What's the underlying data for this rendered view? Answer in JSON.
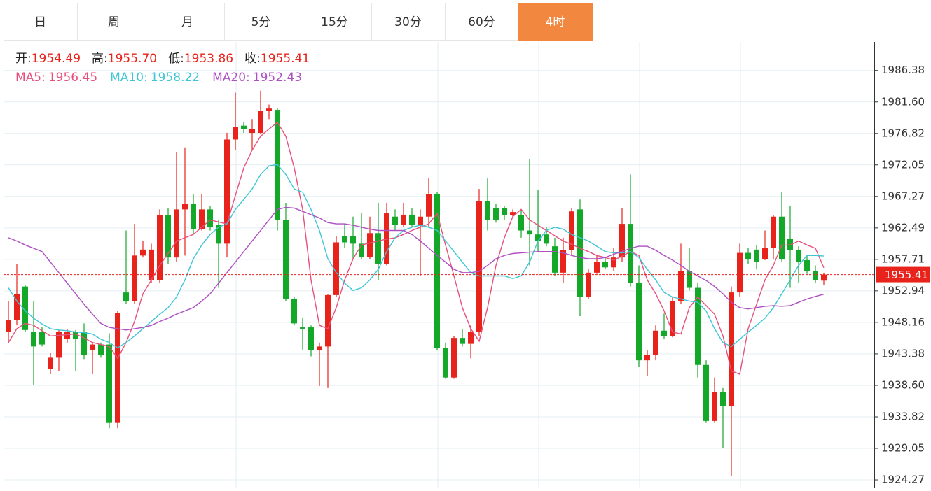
{
  "tabs": [
    "日",
    "周",
    "月",
    "5分",
    "15分",
    "30分",
    "60分",
    "4时"
  ],
  "active_tab": 7,
  "chart_data": {
    "type": "candlestick",
    "ohlc_labels": [
      "开:",
      "高:",
      "低:",
      "收:"
    ],
    "ohlc_value_labels": [
      "1954.49",
      "1955.70",
      "1953.86",
      "1955.41"
    ],
    "up_color": "#e8231b",
    "down_color": "#14a829",
    "open": [
      1946.7,
      1948.5,
      1953.6,
      1946.7,
      1946.7,
      1941.1,
      1942.8,
      1945.6,
      1946.7,
      1946.7,
      1944.0,
      1944.8,
      1944.8,
      1932.9,
      1952.7,
      1951.4,
      1958.3,
      1954.6,
      1954.6,
      1964.4,
      1958.0,
      1965.3,
      1966.1,
      1962.3,
      1965.3,
      1962.9,
      1960.1,
      1975.9,
      1978.0,
      1976.9,
      1976.9,
      1980.3,
      1980.4,
      1963.7,
      1951.7,
      1947.4,
      1947.4,
      1944.0,
      1944.5,
      1952.3,
      1961.3,
      1961.3,
      1960.1,
      1958.1,
      1961.7,
      1957.0,
      1964.2,
      1962.9,
      1964.5,
      1962.9,
      1964.2,
      1967.6,
      1944.3,
      1939.8,
      1945.8,
      1944.9,
      1946.7,
      1966.6,
      1965.5,
      1965.5,
      1964.4,
      1964.4,
      1962.1,
      1961.5,
      1961.5,
      1959.7,
      1955.7,
      1959.1,
      1965.3,
      1952.0,
      1955.7,
      1957.3,
      1956.5,
      1958.0,
      1963.1,
      1954.1,
      1942.4,
      1943.2,
      1946.9,
      1946.1,
      1951.4,
      1955.9,
      1953.4,
      1941.7,
      1933.2,
      1937.6,
      1935.5,
      1952.7,
      1958.7,
      1959.2,
      1957.8,
      1959.4,
      1964.2,
      1960.8,
      1959.1,
      1957.6,
      1955.9,
      1954.49
    ],
    "high": [
      1951.4,
      1957.0,
      1953.8,
      1951.4,
      1947.4,
      1943.5,
      1947.0,
      1947.2,
      1947.0,
      1948.0,
      1945.1,
      1945.1,
      1946.5,
      1949.9,
      1962.1,
      1963.1,
      1960.5,
      1960.1,
      1965.3,
      1965.5,
      1974.0,
      1974.7,
      1967.6,
      1967.6,
      1965.8,
      1963.7,
      1976.9,
      1983.0,
      1978.5,
      1979.0,
      1983.3,
      1981.2,
      1980.6,
      1966.3,
      1952.0,
      1948.8,
      1947.7,
      1945.1,
      1952.5,
      1961.3,
      1963.1,
      1964.2,
      1964.7,
      1964.2,
      1966.3,
      1966.3,
      1965.3,
      1966.3,
      1965.5,
      1965.3,
      1970.0,
      1967.9,
      1945.1,
      1946.1,
      1947.2,
      1947.7,
      1968.4,
      1970.0,
      1966.1,
      1965.8,
      1965.3,
      1965.3,
      1972.9,
      1968.2,
      1962.6,
      1961.0,
      1961.0,
      1965.5,
      1966.8,
      1956.2,
      1958.3,
      1958.0,
      1959.4,
      1965.5,
      1970.6,
      1956.8,
      1944.0,
      1947.7,
      1949.5,
      1952.0,
      1960.1,
      1959.4,
      1954.1,
      1942.4,
      1939.8,
      1938.2,
      1953.6,
      1960.1,
      1959.4,
      1959.9,
      1962.1,
      1964.4,
      1967.9,
      1965.8,
      1959.7,
      1958.3,
      1956.8,
      1955.7
    ],
    "low": [
      1945.1,
      1947.7,
      1946.7,
      1938.7,
      1944.5,
      1940.3,
      1940.8,
      1945.1,
      1940.8,
      1942.6,
      1940.3,
      1942.8,
      1932.1,
      1932.1,
      1950.9,
      1950.9,
      1958.0,
      1954.1,
      1954.1,
      1957.0,
      1957.3,
      1958.3,
      1961.5,
      1962.1,
      1962.1,
      1953.4,
      1958.0,
      1974.3,
      1976.9,
      1974.3,
      1976.7,
      1979.0,
      1962.1,
      1951.4,
      1947.7,
      1944.0,
      1943.0,
      1938.5,
      1938.2,
      1952.0,
      1959.4,
      1957.8,
      1957.8,
      1957.8,
      1954.6,
      1956.8,
      1962.1,
      1962.6,
      1962.6,
      1955.2,
      1962.6,
      1944.0,
      1939.6,
      1939.6,
      1944.5,
      1942.7,
      1946.1,
      1962.1,
      1963.3,
      1963.7,
      1964.2,
      1961.0,
      1956.8,
      1958.9,
      1959.7,
      1955.2,
      1954.1,
      1958.3,
      1949.1,
      1951.7,
      1955.5,
      1956.2,
      1955.9,
      1957.3,
      1953.6,
      1941.4,
      1940.0,
      1942.4,
      1945.6,
      1945.9,
      1950.9,
      1953.0,
      1939.8,
      1932.9,
      1932.9,
      1929.1,
      1924.9,
      1952.0,
      1957.0,
      1956.2,
      1957.6,
      1957.8,
      1957.3,
      1953.4,
      1954.1,
      1955.5,
      1954.1,
      1953.86
    ],
    "close": [
      1948.5,
      1952.5,
      1947.0,
      1944.5,
      1944.8,
      1942.8,
      1946.7,
      1946.7,
      1945.6,
      1943.2,
      1944.8,
      1943.2,
      1932.9,
      1949.6,
      1951.4,
      1958.3,
      1959.2,
      1959.2,
      1964.4,
      1958.0,
      1965.3,
      1966.1,
      1962.3,
      1965.3,
      1962.6,
      1960.1,
      1975.9,
      1977.8,
      1977.5,
      1977.5,
      1980.3,
      1980.6,
      1963.7,
      1951.7,
      1948.0,
      1947.2,
      1944.0,
      1944.5,
      1952.3,
      1960.3,
      1960.3,
      1960.1,
      1958.1,
      1961.7,
      1957.0,
      1964.7,
      1962.9,
      1964.5,
      1962.9,
      1964.2,
      1967.6,
      1944.3,
      1939.8,
      1945.8,
      1944.9,
      1946.7,
      1966.6,
      1963.7,
      1963.7,
      1964.4,
      1964.9,
      1962.1,
      1961.5,
      1960.5,
      1960.1,
      1955.7,
      1959.1,
      1965.0,
      1952.0,
      1955.7,
      1957.3,
      1956.5,
      1958.0,
      1963.1,
      1954.1,
      1942.4,
      1943.2,
      1946.9,
      1946.1,
      1951.4,
      1955.9,
      1953.4,
      1941.7,
      1933.2,
      1937.6,
      1935.5,
      1952.7,
      1958.7,
      1957.8,
      1957.3,
      1959.4,
      1964.2,
      1957.8,
      1959.1,
      1957.3,
      1955.9,
      1954.6,
      1955.41
    ],
    "series": [
      {
        "name": "MA5: ",
        "color": "#e8507c",
        "values": [
          1945.1,
          1947.2,
          1948.0,
          1947.7,
          1946.9,
          1946.1,
          1946.2,
          1946.3,
          1946.4,
          1945.8,
          1945.1,
          1944.8,
          1944.5,
          1942.7,
          1945.1,
          1948.3,
          1952.5,
          1954.6,
          1956.8,
          1958.6,
          1960.5,
          1961.0,
          1961.5,
          1962.6,
          1963.7,
          1963.4,
          1963.1,
          1967.4,
          1971.6,
          1974.3,
          1976.4,
          1977.5,
          1978.5,
          1976.4,
          1971.6,
          1965.3,
          1954.6,
          1947.7,
          1947.2,
          1950.4,
          1954.6,
          1957.8,
          1959.9,
          1960.2,
          1960.5,
          1960.8,
          1961.0,
          1961.5,
          1962.1,
          1962.6,
          1963.1,
          1964.7,
          1959.9,
          1955.2,
          1950.4,
          1947.2,
          1945.3,
          1950.4,
          1956.8,
          1961.0,
          1964.2,
          1965.3,
          1963.7,
          1962.9,
          1962.1,
          1961.3,
          1960.5,
          1960.0,
          1959.4,
          1958.9,
          1958.3,
          1958.0,
          1957.6,
          1958.2,
          1958.9,
          1958.3,
          1954.6,
          1952.5,
          1949.9,
          1946.7,
          1946.4,
          1950.4,
          1952.0,
          1950.7,
          1949.4,
          1946.1,
          1940.8,
          1940.3,
          1947.2,
          1950.9,
          1954.6,
          1956.8,
          1959.9,
          1959.9,
          1960.5,
          1959.9,
          1959.4,
          1956.45
        ]
      },
      {
        "name": "MA10: ",
        "color": "#3ec6d6",
        "values": [
          1953.4,
          1951.4,
          1949.9,
          1948.8,
          1947.9,
          1947.2,
          1947.0,
          1946.9,
          1946.7,
          1946.6,
          1946.4,
          1945.6,
          1945.1,
          1944.3,
          1945.1,
          1946.1,
          1947.2,
          1948.3,
          1949.4,
          1950.4,
          1952.0,
          1954.6,
          1957.8,
          1959.9,
          1961.5,
          1962.6,
          1963.1,
          1965.3,
          1966.8,
          1968.4,
          1970.6,
          1971.9,
          1972.1,
          1970.6,
          1968.4,
          1967.9,
          1965.3,
          1962.1,
          1957.8,
          1955.7,
          1954.1,
          1953.0,
          1953.4,
          1954.6,
          1956.2,
          1958.9,
          1961.0,
          1962.1,
          1962.6,
          1962.9,
          1962.6,
          1962.1,
          1960.5,
          1958.9,
          1957.3,
          1955.7,
          1955.2,
          1955.2,
          1955.2,
          1955.2,
          1954.8,
          1955.2,
          1957.3,
          1960.5,
          1962.1,
          1962.6,
          1962.3,
          1961.5,
          1961.0,
          1960.5,
          1959.7,
          1958.9,
          1958.7,
          1958.7,
          1958.9,
          1958.0,
          1956.2,
          1954.6,
          1952.7,
          1952.0,
          1951.7,
          1951.4,
          1951.2,
          1949.9,
          1947.2,
          1945.1,
          1944.5,
          1945.6,
          1946.7,
          1947.7,
          1948.8,
          1950.4,
          1952.5,
          1954.6,
          1956.8,
          1958.3,
          1958.3,
          1958.22
        ]
      },
      {
        "name": "MA20: ",
        "color": "#ae4fc2",
        "values": [
          1961.0,
          1960.5,
          1959.9,
          1959.4,
          1958.9,
          1957.3,
          1955.7,
          1954.1,
          1952.5,
          1950.9,
          1949.4,
          1948.0,
          1947.4,
          1947.2,
          1947.0,
          1947.2,
          1947.4,
          1947.7,
          1948.3,
          1948.8,
          1949.4,
          1949.9,
          1950.4,
          1951.4,
          1952.5,
          1954.1,
          1955.7,
          1957.3,
          1958.9,
          1960.5,
          1962.1,
          1963.7,
          1965.3,
          1965.6,
          1965.5,
          1965.0,
          1964.5,
          1964.0,
          1963.3,
          1963.1,
          1963.1,
          1962.9,
          1962.6,
          1962.3,
          1962.1,
          1962.1,
          1962.1,
          1962.1,
          1961.5,
          1960.5,
          1959.4,
          1958.3,
          1957.3,
          1956.2,
          1955.7,
          1955.7,
          1955.9,
          1956.8,
          1957.8,
          1958.3,
          1958.6,
          1958.7,
          1958.8,
          1958.9,
          1958.9,
          1958.9,
          1958.7,
          1958.3,
          1958.0,
          1957.8,
          1957.8,
          1958.0,
          1958.5,
          1958.9,
          1959.4,
          1959.7,
          1959.7,
          1959.1,
          1958.3,
          1957.6,
          1956.8,
          1955.9,
          1955.2,
          1954.5,
          1953.6,
          1952.5,
          1951.2,
          1950.4,
          1950.2,
          1950.4,
          1950.6,
          1950.7,
          1950.6,
          1950.7,
          1951.2,
          1951.7,
          1952.1,
          1952.43
        ]
      }
    ],
    "ylim": [
      1923.0,
      1990.7
    ],
    "yticks": [
      1986.38,
      {
        "value": 1981.6,
        "label": "1981.60"
      },
      1976.82,
      1972.05,
      1967.27,
      1962.49,
      1957.71,
      1952.94,
      1948.16,
      1943.38,
      {
        "value": 1938.6,
        "label": "1938.60"
      },
      1933.82,
      1929.05,
      1924.27
    ],
    "grid": true,
    "last_price_line": true
  }
}
